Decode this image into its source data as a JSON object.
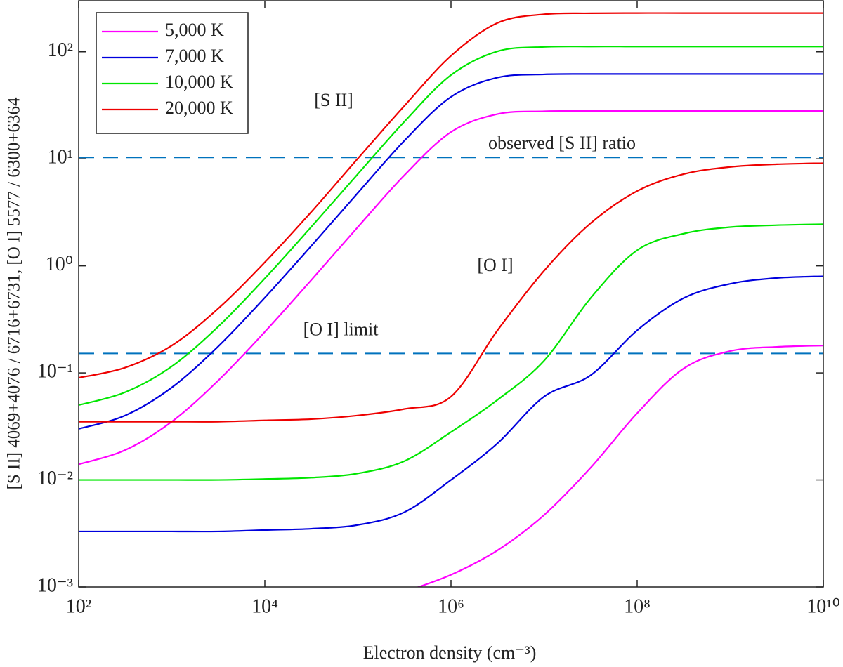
{
  "chart_data": {
    "type": "line",
    "xlabel": "Electron density (cm⁻³)",
    "ylabel": "[S II] 4069+4076 / 6716+6731,   [O I] 5577 / 6300+6364",
    "xscale": "log",
    "yscale": "log",
    "xlim": [
      100,
      10000000000
    ],
    "ylim": [
      0.001,
      300
    ],
    "xticks": [
      {
        "value": 100,
        "label": "10²"
      },
      {
        "value": 10000,
        "label": "10⁴"
      },
      {
        "value": 1000000,
        "label": "10⁶"
      },
      {
        "value": 100000000,
        "label": "10⁸"
      },
      {
        "value": 10000000000,
        "label": "10¹⁰"
      }
    ],
    "yticks": [
      {
        "value": 0.001,
        "label": "10⁻³"
      },
      {
        "value": 0.01,
        "label": "10⁻²"
      },
      {
        "value": 0.1,
        "label": "10⁻¹"
      },
      {
        "value": 1,
        "label": "10⁰"
      },
      {
        "value": 10,
        "label": "10¹"
      },
      {
        "value": 100,
        "label": "10²"
      }
    ],
    "legend": "upper left",
    "x": [
      100,
      316,
      1000,
      3162,
      10000,
      31623,
      100000,
      316228,
      1000000,
      3162278,
      10000000,
      31622777,
      100000000,
      316227766,
      1000000000,
      3162277660,
      10000000000
    ],
    "series": [
      {
        "name": "5,000 K",
        "color": "#ff00ff",
        "values": [
          0.014,
          0.019,
          0.035,
          0.085,
          0.242,
          0.739,
          2.31,
          7.04,
          17.8,
          26.2,
          27.8,
          28,
          28,
          28,
          28,
          28,
          28
        ]
      },
      {
        "name": "7,000 K",
        "color": "#0000dd",
        "values": [
          0.03,
          0.04,
          0.073,
          0.177,
          0.505,
          1.54,
          4.81,
          14.8,
          37.9,
          57.4,
          61.5,
          62,
          62,
          62,
          62,
          62,
          62
        ]
      },
      {
        "name": "10,000 K",
        "color": "#00e600",
        "values": [
          0.05,
          0.066,
          0.115,
          0.271,
          0.763,
          2.32,
          7.23,
          22.3,
          60.6,
          101,
          111,
          112,
          112,
          112,
          112,
          112,
          112
        ]
      },
      {
        "name": "20,000 K",
        "color": "#ee0000",
        "values": [
          0.09,
          0.112,
          0.18,
          0.4,
          1.08,
          3.2,
          10.08,
          31.3,
          91.7,
          186,
          224,
          229,
          230,
          230,
          230,
          230,
          230
        ]
      },
      {
        "name": "5,000 K",
        "color": "#ff00ff",
        "values": [
          null,
          null,
          null,
          null,
          null,
          null,
          null,
          0.0009,
          0.0013,
          0.0022,
          0.0047,
          0.013,
          0.042,
          0.11,
          0.16,
          0.175,
          0.18
        ]
      },
      {
        "name": "7,000 K",
        "color": "#0000dd",
        "values": [
          0.0033,
          0.0033,
          0.0033,
          0.0033,
          0.0034,
          0.0035,
          0.0038,
          0.005,
          0.01,
          0.022,
          0.06,
          0.095,
          0.25,
          0.5,
          0.68,
          0.77,
          0.8
        ]
      },
      {
        "name": "10,000 K",
        "color": "#00e600",
        "values": [
          0.01,
          0.01,
          0.01,
          0.01,
          0.0102,
          0.0105,
          0.0115,
          0.015,
          0.028,
          0.056,
          0.13,
          0.5,
          1.4,
          2.0,
          2.3,
          2.4,
          2.45
        ]
      },
      {
        "name": "20,000 K",
        "color": "#ee0000",
        "values": [
          0.035,
          0.035,
          0.035,
          0.035,
          0.036,
          0.037,
          0.04,
          0.046,
          0.06,
          0.25,
          0.9,
          2.5,
          5.0,
          7.2,
          8.4,
          8.9,
          9.1
        ]
      }
    ],
    "hlines": [
      {
        "value": 10.3,
        "label": "observed [S II] ratio",
        "color": "#0072bd"
      },
      {
        "value": 0.152,
        "label": "[O I] limit",
        "color": "#0072bd"
      }
    ],
    "annotations": [
      "[S II]",
      "[O I]"
    ]
  }
}
